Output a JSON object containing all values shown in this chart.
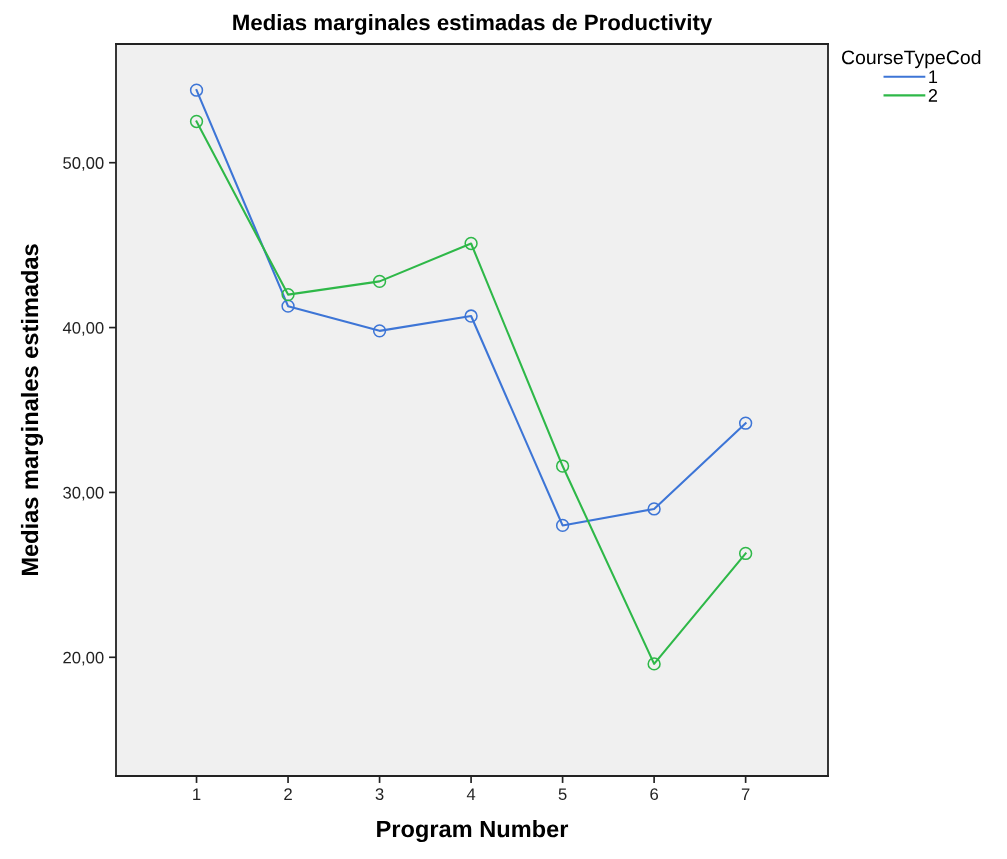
{
  "chart_data": {
    "type": "line",
    "title": "Medias marginales estimadas de Productivity",
    "xlabel": "Program Number",
    "ylabel": "Medias marginales estimadas",
    "legend_title": "CourseTypeCod",
    "x": [
      1,
      2,
      3,
      4,
      5,
      6,
      7
    ],
    "xlim": [
      0.12,
      7.9
    ],
    "xticks": [
      1,
      2,
      3,
      4,
      5,
      6,
      7
    ],
    "ylim": [
      12.8,
      57.2
    ],
    "yticks": [
      {
        "value": 20,
        "label": "20,00"
      },
      {
        "value": 30,
        "label": "30,00"
      },
      {
        "value": 40,
        "label": "40,00"
      },
      {
        "value": 50,
        "label": "50,00"
      }
    ],
    "series": [
      {
        "name": "1",
        "color": "#3d75d6",
        "values": [
          54.4,
          41.3,
          39.8,
          40.7,
          28.0,
          29.0,
          34.2
        ]
      },
      {
        "name": "2",
        "color": "#2eb848",
        "values": [
          52.5,
          42.0,
          42.8,
          45.1,
          31.6,
          19.6,
          26.3
        ]
      }
    ],
    "marker": "circle",
    "line_style": "solid",
    "grid": false,
    "legend": "top right"
  }
}
